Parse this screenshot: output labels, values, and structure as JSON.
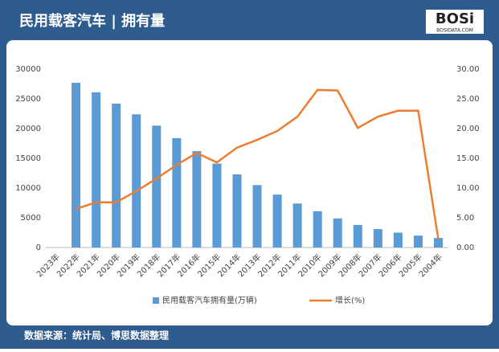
{
  "header": {
    "title": "民用载客汽车 | 拥有量",
    "logo": "BOSi",
    "logo_sub": "BOSIDATA.COM"
  },
  "footer": {
    "source": "数据来源：统计局、博思数据整理"
  },
  "chart_data": {
    "type": "bar",
    "categories": [
      "2023年",
      "2022年",
      "2021年",
      "2020年",
      "2019年",
      "2018年",
      "2017年",
      "2016年",
      "2015年",
      "2014年",
      "2013年",
      "2012年",
      "2011年",
      "2010年",
      "2009年",
      "2008年",
      "2007年",
      "2006年",
      "2005年",
      "2004年"
    ],
    "series": [
      {
        "name": "民用载客汽车拥有量(万辆)",
        "type": "bar",
        "color": "#5b9bd5",
        "values": [
          null,
          27700,
          26100,
          24200,
          22400,
          20500,
          18400,
          16200,
          14100,
          12300,
          10500,
          8900,
          7400,
          6100,
          4900,
          3800,
          3100,
          2500,
          2000,
          1600
        ]
      },
      {
        "name": "增长(%)",
        "type": "line",
        "axis": "y2",
        "color": "#ed7d31",
        "values": [
          null,
          6.5,
          7.6,
          7.6,
          9.5,
          11.6,
          13.9,
          15.9,
          14.3,
          16.8,
          18.1,
          19.6,
          22.0,
          26.5,
          26.4,
          20.1,
          22.0,
          23.0,
          23.0,
          1.4
        ]
      }
    ],
    "ylim": [
      0,
      30000
    ],
    "yticks": [
      0,
      5000,
      10000,
      15000,
      20000,
      25000,
      30000
    ],
    "y2lim": [
      0,
      30
    ],
    "y2ticks": [
      {
        "value": 0,
        "label": "0.00"
      },
      {
        "value": 5,
        "label": "5.00"
      },
      {
        "value": 10,
        "label": "10.00"
      },
      {
        "value": 15,
        "label": "15.00"
      },
      {
        "value": 20,
        "label": "20.00"
      },
      {
        "value": 25,
        "label": "25.00"
      },
      {
        "value": 30,
        "label": "30.00"
      }
    ],
    "legend": "bottom"
  }
}
